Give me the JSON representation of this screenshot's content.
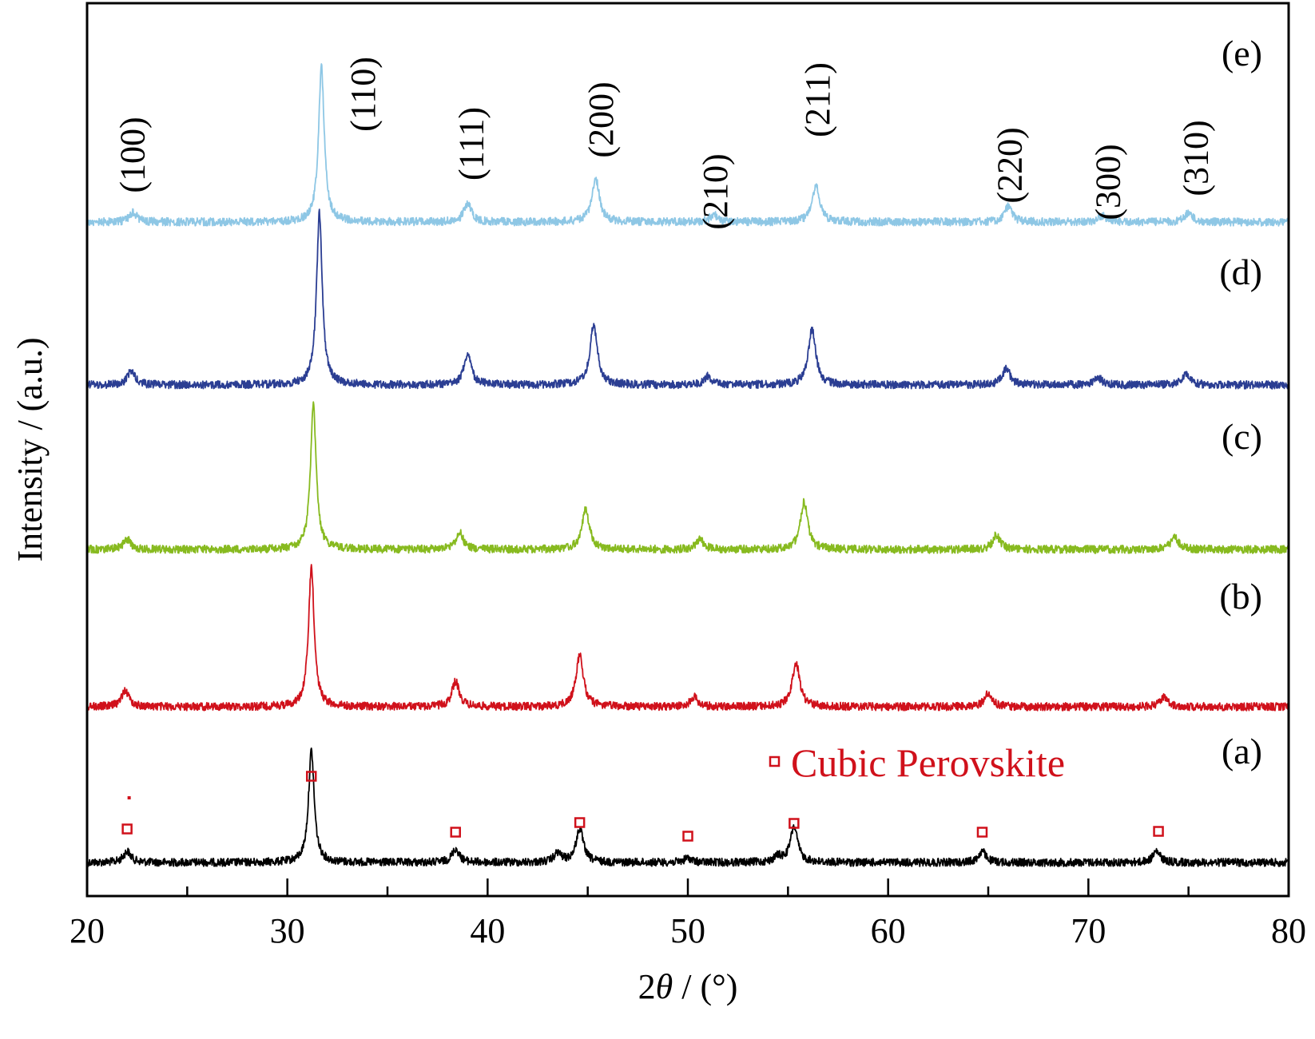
{
  "chart_data": {
    "type": "line",
    "xlabel_prefix": "2",
    "xlabel_symbol": "θ",
    "xlabel_suffix": " / (°)",
    "ylabel": "Intensity / (a.u.)",
    "xlim": [
      20,
      80
    ],
    "x_ticks": [
      20,
      30,
      40,
      50,
      60,
      70,
      80
    ],
    "x_tick_labels": [
      "20",
      "30",
      "40",
      "50",
      "60",
      "70",
      "80"
    ],
    "grid": false,
    "legend": {
      "text": "Cubic Perovskite",
      "placement": "bottom-right",
      "color": "#d0111b"
    },
    "peak_labels": [
      {
        "text": "(100)",
        "x": 22.3
      },
      {
        "text": "(110)",
        "x": 33.8
      },
      {
        "text": "(111)",
        "x": 39.2
      },
      {
        "text": "(200)",
        "x": 45.7
      },
      {
        "text": "(210)",
        "x": 51.4
      },
      {
        "text": "(211)",
        "x": 56.5
      },
      {
        "text": "(220)",
        "x": 66.1
      },
      {
        "text": "(300)",
        "x": 71.0
      },
      {
        "text": "(310)",
        "x": 75.4
      }
    ],
    "series": [
      {
        "name": "(a)",
        "color": "#000000",
        "peaks": [
          [
            22.0,
            0.1
          ],
          [
            31.2,
            1.0
          ],
          [
            38.4,
            0.12
          ],
          [
            43.5,
            0.08
          ],
          [
            44.6,
            0.3
          ],
          [
            50.0,
            0.04
          ],
          [
            54.5,
            0.05
          ],
          [
            55.3,
            0.32
          ],
          [
            64.7,
            0.1
          ],
          [
            73.4,
            0.1
          ]
        ],
        "reference_peaks": [
          22.0,
          31.2,
          38.4,
          44.6,
          50.0,
          55.3,
          64.7,
          73.5
        ]
      },
      {
        "name": "(b)",
        "color": "#d0111b",
        "peaks": [
          [
            21.9,
            0.12
          ],
          [
            31.2,
            1.0
          ],
          [
            38.4,
            0.18
          ],
          [
            44.6,
            0.37
          ],
          [
            50.3,
            0.07
          ],
          [
            55.4,
            0.32
          ],
          [
            65.0,
            0.1
          ],
          [
            73.8,
            0.07
          ]
        ]
      },
      {
        "name": "(c)",
        "color": "#87ba1f",
        "peaks": [
          [
            22.0,
            0.07
          ],
          [
            31.3,
            1.0
          ],
          [
            38.6,
            0.12
          ],
          [
            44.9,
            0.28
          ],
          [
            50.6,
            0.07
          ],
          [
            55.8,
            0.33
          ],
          [
            65.4,
            0.1
          ],
          [
            74.3,
            0.09
          ]
        ]
      },
      {
        "name": "(d)",
        "color": "#2b3e93",
        "peaks": [
          [
            22.2,
            0.08
          ],
          [
            31.6,
            1.0
          ],
          [
            39.0,
            0.18
          ],
          [
            45.3,
            0.35
          ],
          [
            51.0,
            0.05
          ],
          [
            56.2,
            0.33
          ],
          [
            65.9,
            0.1
          ],
          [
            70.5,
            0.04
          ],
          [
            74.9,
            0.07
          ]
        ]
      },
      {
        "name": "(e)",
        "color": "#8ec7e5",
        "peaks": [
          [
            22.3,
            0.06
          ],
          [
            31.7,
            1.0
          ],
          [
            39.0,
            0.12
          ],
          [
            45.4,
            0.28
          ],
          [
            51.3,
            0.05
          ],
          [
            56.4,
            0.24
          ],
          [
            66.0,
            0.1
          ],
          [
            70.7,
            0.04
          ],
          [
            75.0,
            0.06
          ]
        ]
      }
    ]
  }
}
